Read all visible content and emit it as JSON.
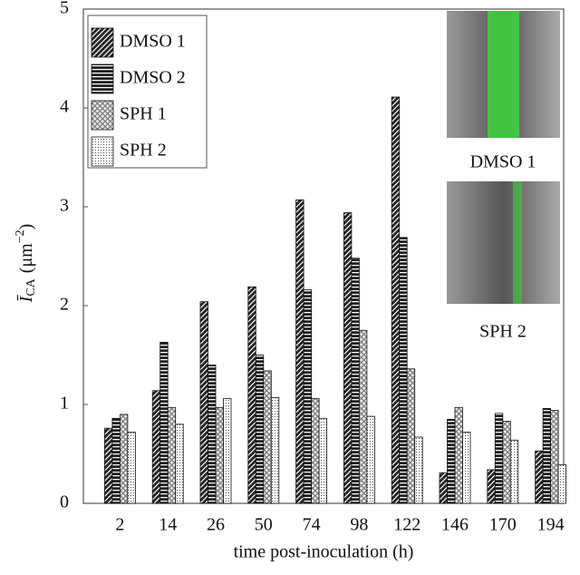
{
  "chart_data": {
    "type": "bar",
    "x_label": "time post-inoculation (h)",
    "y_label": {
      "main": "Ī",
      "sub": "CA",
      "unit": "(μm",
      "sup": "−2",
      "close": ")"
    },
    "categories": [
      "2",
      "14",
      "26",
      "50",
      "74",
      "98",
      "122",
      "146",
      "170",
      "194"
    ],
    "series": [
      {
        "name": "DMSO 1",
        "color": "#222222",
        "pattern": "diagonal",
        "values": [
          0.76,
          1.14,
          2.04,
          2.19,
          3.07,
          2.94,
          4.11,
          0.31,
          0.34,
          0.53
        ]
      },
      {
        "name": "DMSO 2",
        "color": "#222222",
        "pattern": "horizontal",
        "values": [
          0.86,
          1.63,
          1.4,
          1.5,
          2.16,
          2.48,
          2.69,
          0.85,
          0.91,
          0.96
        ]
      },
      {
        "name": "SPH 1",
        "color": "#777777",
        "pattern": "crosshatch",
        "values": [
          0.9,
          0.97,
          0.97,
          1.34,
          1.06,
          1.75,
          1.36,
          0.97,
          0.83,
          0.94
        ]
      },
      {
        "name": "SPH 2",
        "color": "#555555",
        "pattern": "dots",
        "values": [
          0.72,
          0.8,
          1.06,
          1.07,
          0.86,
          0.88,
          0.67,
          0.72,
          0.64,
          0.39
        ]
      }
    ],
    "ylim": [
      0,
      5
    ],
    "yticks": [
      0,
      1,
      2,
      3,
      4,
      5
    ],
    "legend": "upper left",
    "annotations": [
      "DMSO 1",
      "SPH 2"
    ]
  }
}
